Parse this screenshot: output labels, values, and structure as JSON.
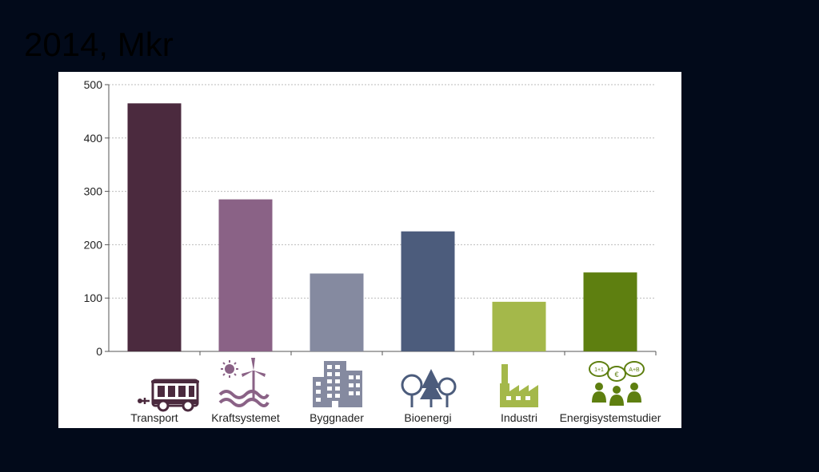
{
  "title": "2014, Mkr",
  "chart_data": {
    "type": "bar",
    "title": "",
    "xlabel": "",
    "ylabel": "",
    "ylim": [
      0,
      500
    ],
    "yticks": [
      0,
      100,
      200,
      300,
      400,
      500
    ],
    "grid": true,
    "categories": [
      "Transport",
      "Kraftsystemet",
      "Byggnader",
      "Bioenergi",
      "Industri",
      "Energisystemstudier"
    ],
    "values": [
      465,
      285,
      146,
      225,
      93,
      148
    ],
    "colors": [
      "#4b2a3e",
      "#8a6286",
      "#858aa0",
      "#4c5c7c",
      "#a4b84a",
      "#5e7f10"
    ],
    "icons": [
      "bus-icon",
      "wind-solar-wave-icon",
      "building-icon",
      "trees-icon",
      "factory-icon",
      "people-discussion-icon"
    ]
  }
}
